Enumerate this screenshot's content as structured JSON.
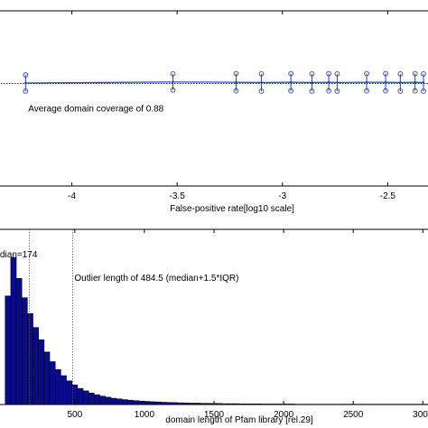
{
  "chart_data": [
    {
      "type": "line",
      "xlabel": "False-positive rate[log10 scale]",
      "ylabel": "",
      "xlim": [
        -4.35,
        -2.3
      ],
      "ylim": [
        0.5,
        1.15
      ],
      "xticks": [
        -4,
        -3.5,
        -3,
        -2.5
      ],
      "xtick_labels": [
        "-4",
        "-3.5",
        "-3",
        "-2.5"
      ],
      "reference_line": {
        "y": 0.88,
        "style": "dotted",
        "label": "Average domain coverage of 0.88"
      },
      "series": [
        {
          "color": "#1f3fd0",
          "x": [
            -4.22,
            -3.52,
            -3.22,
            -3.1,
            -2.96,
            -2.86,
            -2.78,
            -2.74,
            -2.6,
            -2.51,
            -2.44,
            -2.37,
            -2.33
          ],
          "y": [
            0.882,
            0.886,
            0.885,
            0.884,
            0.885,
            0.884,
            0.885,
            0.884,
            0.885,
            0.885,
            0.884,
            0.885,
            0.884
          ],
          "upper": [
            0.912,
            0.916,
            0.917,
            0.916,
            0.917,
            0.916,
            0.917,
            0.916,
            0.917,
            0.917,
            0.916,
            0.917,
            0.916
          ],
          "lower": [
            0.852,
            0.856,
            0.853,
            0.852,
            0.853,
            0.852,
            0.853,
            0.852,
            0.853,
            0.853,
            0.852,
            0.853,
            0.852
          ]
        }
      ]
    },
    {
      "type": "bar",
      "xlabel": "domain length of Pfam library [rel.29]",
      "ylabel": "",
      "xlim": [
        -50,
        3050
      ],
      "ylim": [
        0,
        1000
      ],
      "xticks": [
        500,
        1000,
        1500,
        2000,
        2500,
        3000
      ],
      "xtick_labels": [
        "500",
        "1000",
        "1500",
        "2000",
        "2500",
        "3000"
      ],
      "bar_color": "#0a0a8c",
      "bin_width": 40,
      "bin_starts": [
        0,
        40,
        80,
        120,
        160,
        200,
        240,
        280,
        320,
        360,
        400,
        440,
        480,
        520,
        560,
        600,
        640,
        680,
        720,
        760,
        800,
        840,
        880,
        920,
        960,
        1000,
        1040,
        1080,
        1120,
        1160,
        1200,
        1240,
        1280,
        1320,
        1360,
        1400,
        1440,
        1480,
        1520,
        1560,
        1600,
        1640,
        1680,
        1720,
        1760,
        1800,
        1840,
        1880,
        1920,
        1960,
        2000,
        2040,
        2080,
        2120,
        2160,
        2200,
        2240,
        2280,
        2320,
        2360,
        2400,
        2440,
        2480,
        2520,
        2560,
        2600,
        2640,
        2680,
        2720,
        2760,
        2800,
        2840,
        2880,
        2920,
        2960,
        3000
      ],
      "counts": [
        620,
        840,
        720,
        610,
        520,
        440,
        370,
        300,
        245,
        200,
        165,
        135,
        112,
        92,
        78,
        66,
        56,
        48,
        42,
        36,
        32,
        28,
        25,
        22,
        20,
        18,
        16,
        15,
        13,
        12,
        11,
        10,
        9,
        8,
        8,
        7,
        7,
        6,
        6,
        5,
        5,
        5,
        4,
        4,
        4,
        4,
        3,
        3,
        3,
        3,
        3,
        3,
        2,
        2,
        2,
        2,
        2,
        2,
        2,
        2,
        2,
        2,
        2,
        2,
        2,
        2,
        2,
        2,
        2,
        2,
        2,
        2,
        2,
        2,
        2,
        2
      ],
      "reference_lines": [
        {
          "x": 174,
          "label": "dian=174"
        },
        {
          "x": 484.5,
          "label": "Outlier length of 484.5 (median+1.5*IQR)"
        }
      ]
    }
  ]
}
